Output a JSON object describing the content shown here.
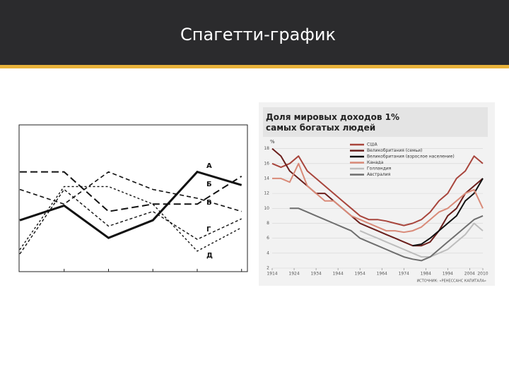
{
  "slide": {
    "title": "Спагетти-график"
  },
  "chart_data": [
    {
      "type": "line",
      "categories": [
        null,
        null,
        null,
        null,
        null,
        null
      ],
      "ylim": [
        0,
        10
      ],
      "series": [
        {
          "name": "А",
          "color": "#111111",
          "values": [
            3.5,
            4.5,
            2.3,
            3.5,
            6.8,
            5.9
          ]
        },
        {
          "name": "Б",
          "color": "#111111",
          "values": [
            6.8,
            6.8,
            4.1,
            4.6,
            4.6,
            6.5
          ]
        },
        {
          "name": "В",
          "color": "#111111",
          "values": [
            5.6,
            4.6,
            6.8,
            5.6,
            5.0,
            4.1
          ]
        },
        {
          "name": "Г",
          "color": "#111111",
          "values": [
            1.2,
            5.6,
            3.1,
            4.1,
            2.2,
            3.6
          ]
        },
        {
          "name": "Д",
          "color": "#111111",
          "values": [
            1.5,
            5.8,
            5.8,
            4.6,
            1.4,
            3.0
          ]
        }
      ]
    },
    {
      "type": "line",
      "title": "Доля мировых доходов 1% самых богатых людей",
      "y_label": "%",
      "source": "ИСТОЧНИК: «РЕНЕССАНС КАПИТАЛА»",
      "x": [
        1914,
        1918,
        1922,
        1926,
        1930,
        1934,
        1938,
        1942,
        1946,
        1950,
        1954,
        1958,
        1962,
        1966,
        1970,
        1974,
        1978,
        1982,
        1986,
        1990,
        1994,
        1998,
        2002,
        2006,
        2010
      ],
      "xlim": [
        1914,
        2010
      ],
      "xticks": [
        1914,
        1924,
        1934,
        1944,
        1954,
        1964,
        1974,
        1984,
        1994,
        2004,
        2010
      ],
      "ylim": [
        2,
        19
      ],
      "yticks": [
        2,
        4,
        6,
        8,
        10,
        12,
        14,
        16,
        18
      ],
      "grid": true,
      "series": [
        {
          "name": "США",
          "color": "#a8453c",
          "values": [
            16,
            15.5,
            16,
            17,
            15,
            14,
            13,
            12,
            11,
            10,
            9,
            8.5,
            8.5,
            8.3,
            8,
            7.7,
            8,
            8.5,
            9.5,
            11,
            12,
            14,
            15,
            17,
            16
          ]
        },
        {
          "name": "Великобритания (семьи)",
          "color": "#6b1f1c",
          "values": [
            18,
            17,
            15,
            14,
            13,
            12,
            12,
            11,
            10,
            9,
            8,
            7.5,
            7,
            6.5,
            6,
            5.5,
            5,
            5,
            5.5,
            7,
            9,
            10,
            12,
            13,
            14
          ]
        },
        {
          "name": "Великобритания (взрослое население)",
          "color": "#111111",
          "values": [
            null,
            null,
            null,
            null,
            null,
            null,
            null,
            null,
            null,
            null,
            null,
            null,
            null,
            null,
            null,
            null,
            5,
            5.2,
            6,
            7,
            8,
            9,
            11,
            12,
            14
          ]
        },
        {
          "name": "Канада",
          "color": "#d98a78",
          "values": [
            14,
            14,
            13.5,
            16,
            13,
            12,
            11,
            11,
            10,
            9,
            8.5,
            8,
            7.5,
            7,
            7,
            6.8,
            7,
            7.5,
            8.5,
            9.5,
            10,
            11,
            12,
            12.5,
            10
          ]
        },
        {
          "name": "Голландия",
          "color": "#bdbdbd",
          "values": [
            null,
            null,
            null,
            null,
            null,
            null,
            null,
            null,
            null,
            null,
            7,
            6.5,
            6,
            5.5,
            5,
            4.5,
            4,
            3.5,
            3.5,
            4,
            4.5,
            5.5,
            6.5,
            8,
            7
          ]
        },
        {
          "name": "Австралия",
          "color": "#6e6e6e",
          "values": [
            null,
            null,
            10,
            10,
            9.5,
            9,
            8.5,
            8,
            7.5,
            7,
            6,
            5.5,
            5,
            4.5,
            4,
            3.5,
            3.2,
            3,
            3.5,
            4.5,
            5.5,
            6.5,
            7.5,
            8.5,
            9
          ]
        }
      ]
    }
  ]
}
